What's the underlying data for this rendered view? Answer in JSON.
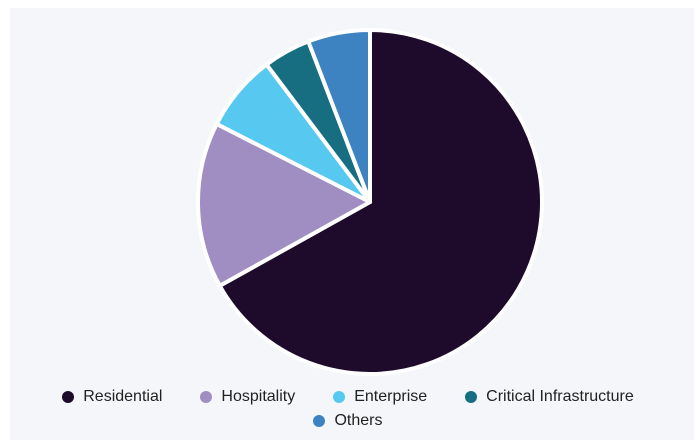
{
  "chart_data": {
    "type": "pie",
    "title": "",
    "legend_position": "bottom",
    "slices": [
      {
        "label": "Residential",
        "value": 66.5,
        "color": "#1e0a2a"
      },
      {
        "label": "Hospitality",
        "value": 15.5,
        "color": "#a08dc2"
      },
      {
        "label": "Enterprise",
        "value": 7.2,
        "color": "#57c8f0"
      },
      {
        "label": "Critical Infrastructure",
        "value": 4.4,
        "color": "#166e80"
      },
      {
        "label": "Others",
        "value": 5.8,
        "color": "#3d82c1"
      }
    ]
  }
}
